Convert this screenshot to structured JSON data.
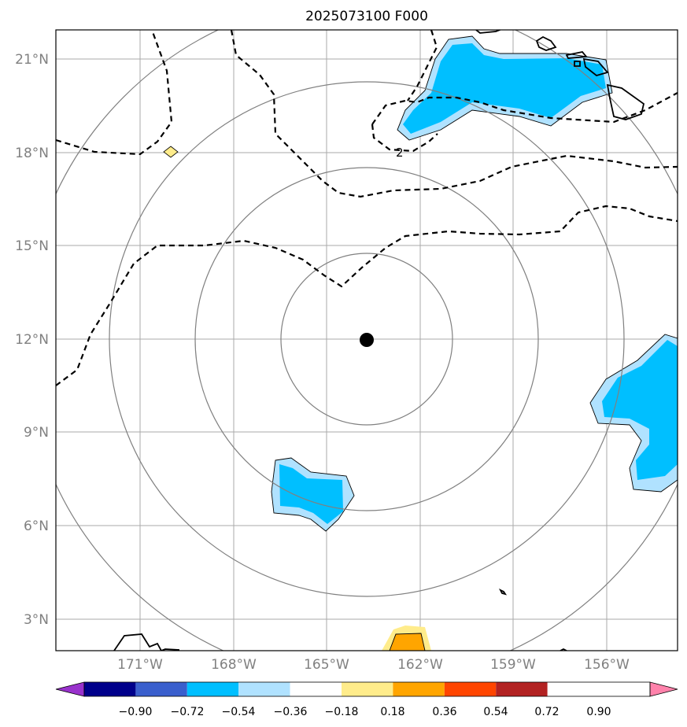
{
  "title": "2025073100 F000",
  "axes": {
    "y_ticks": [
      "21°N",
      "18°N",
      "15°N",
      "12°N",
      "9°N",
      "6°N",
      "3°N"
    ],
    "x_ticks": [
      "171°W",
      "168°W",
      "165°W",
      "162°W",
      "159°W",
      "156°W"
    ]
  },
  "contour_label": "2",
  "colorbar": {
    "labels": [
      "−0.90",
      "−0.72",
      "−0.54",
      "−0.36",
      "−0.18",
      "0.18",
      "0.36",
      "0.54",
      "0.72",
      "0.90"
    ],
    "colors": [
      "#9932cc",
      "#00008b",
      "#3a5fcd",
      "#00bfff",
      "#b0e2ff",
      "#ffffff",
      "#ffec8b",
      "#ffa500",
      "#ff4500",
      "#b22222",
      "#ff82ab"
    ]
  },
  "center_marker": {
    "lon": -163.7,
    "lat": 12.0
  }
}
